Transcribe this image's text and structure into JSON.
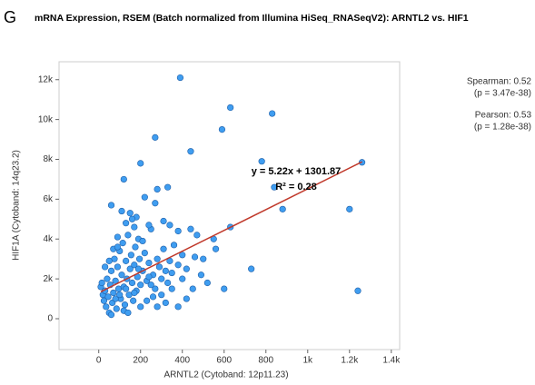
{
  "panel_label": "G",
  "chart_data": {
    "type": "scatter",
    "title": "mRNA Expression, RSEM (Batch normalized from Illumina HiSeq_RNASeqV2): ARNTL2 vs. HIF1",
    "x_label": "ARNTL2 (Cytoband: 12p11.23)",
    "y_label": "HIF1A (Cytoband: 14q23.2)",
    "color": "#3f9df0",
    "edge_color": "#1f5fa8",
    "xlim": [
      -190,
      1440
    ],
    "ylim": [
      -1550,
      12900
    ],
    "xticks": [
      0,
      200,
      400,
      600,
      800,
      {
        "value": 1000,
        "label": "1k"
      },
      {
        "value": 1200,
        "label": "1.2k"
      },
      {
        "value": 1400,
        "label": "1.4k"
      }
    ],
    "yticks": [
      0,
      {
        "value": 2000,
        "label": "2k"
      },
      {
        "value": 4000,
        "label": "4k"
      },
      {
        "value": 6000,
        "label": "6k"
      },
      {
        "value": 8000,
        "label": "8k"
      },
      {
        "value": 10000,
        "label": "10k"
      },
      {
        "value": 12000,
        "label": "12k"
      }
    ],
    "x": [
      390,
      630,
      830,
      590,
      270,
      440,
      780,
      1260,
      200,
      120,
      330,
      280,
      220,
      840,
      630,
      880,
      1200,
      60,
      1240,
      730,
      560,
      500,
      490,
      600,
      420,
      380,
      320,
      10,
      15,
      20,
      25,
      30,
      35,
      40,
      45,
      50,
      55,
      60,
      65,
      70,
      75,
      80,
      85,
      90,
      95,
      100,
      105,
      110,
      115,
      120,
      125,
      130,
      135,
      140,
      145,
      150,
      155,
      160,
      165,
      170,
      175,
      180,
      185,
      190,
      195,
      200,
      210,
      220,
      230,
      240,
      250,
      260,
      270,
      280,
      290,
      300,
      310,
      320,
      330,
      340,
      350,
      360,
      380,
      400,
      420,
      440,
      460,
      30,
      50,
      70,
      90,
      110,
      130,
      150,
      170,
      180,
      240,
      120,
      140,
      60,
      200,
      230,
      260,
      160,
      210,
      190,
      80,
      100,
      130,
      170,
      250,
      300,
      280,
      350,
      400,
      450,
      520,
      550,
      470,
      380,
      340,
      310,
      270,
      90,
      240
    ],
    "values": [
      12100,
      10600,
      10300,
      9500,
      9100,
      8400,
      7900,
      7850,
      7800,
      7000,
      6600,
      6500,
      6100,
      6600,
      4600,
      5500,
      5500,
      5700,
      1400,
      2500,
      3500,
      3000,
      2200,
      1500,
      1000,
      600,
      800,
      1600,
      1800,
      1200,
      900,
      1400,
      600,
      2000,
      1100,
      300,
      1700,
      2400,
      800,
      1300,
      3000,
      1900,
      500,
      2600,
      1500,
      3400,
      1000,
      2200,
      3800,
      1600,
      700,
      2900,
      2000,
      4200,
      1200,
      2500,
      3200,
      1800,
      900,
      2700,
      3600,
      1400,
      2100,
      4000,
      3000,
      1700,
      2400,
      3300,
      1900,
      2800,
      4500,
      2200,
      1500,
      3000,
      2600,
      2000,
      3500,
      2400,
      1800,
      2900,
      2300,
      3700,
      2700,
      3200,
      2500,
      4500,
      3100,
      2600,
      2900,
      3500,
      4100,
      5400,
      4800,
      5300,
      4600,
      5100,
      4700,
      400,
      300,
      200,
      600,
      900,
      1100,
      5000,
      3900,
      2500,
      1000,
      1200,
      1500,
      1300,
      1700,
      1200,
      600,
      1500,
      2000,
      1500,
      1800,
      4000,
      4200,
      4400,
      4700,
      4900,
      5800,
      3600,
      2100
    ],
    "regression": {
      "slope": 5.22,
      "intercept": 1301.87,
      "color": "#c0392b",
      "equation": "y = 5.22x + 1301.87",
      "r2_label": "R² = 0.28"
    },
    "stats": [
      "Spearman: 0.52",
      "(p = 3.47e-38)",
      "Pearson: 0.53",
      "(p = 1.28e-38)"
    ]
  }
}
